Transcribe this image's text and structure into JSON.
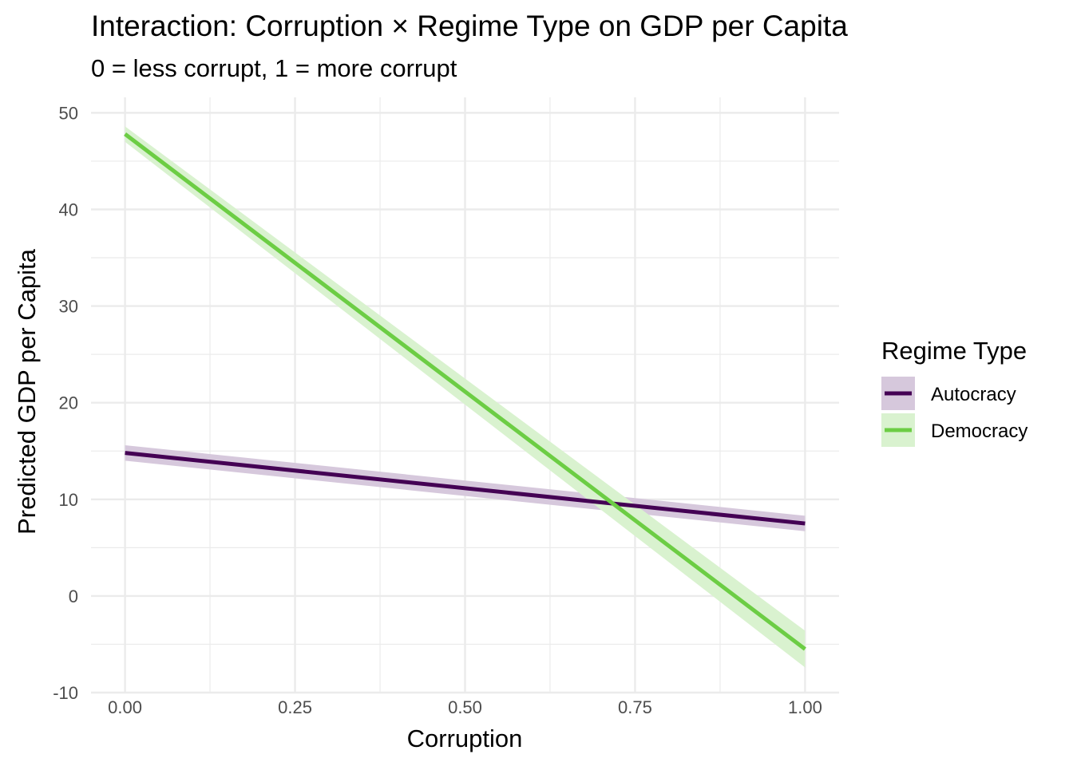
{
  "chart_data": {
    "type": "line",
    "title": "Interaction: Corruption × Regime Type on GDP per Capita",
    "subtitle": "0 = less corrupt, 1 = more corrupt",
    "xlabel": "Corruption",
    "ylabel": "Predicted GDP per Capita",
    "xlim": [
      -0.05,
      1.05
    ],
    "ylim": [
      -10,
      51.6
    ],
    "x_ticks": [
      0,
      0.25,
      0.5,
      0.75,
      1
    ],
    "x_tick_labels": [
      "0.00",
      "0.25",
      "0.50",
      "0.75",
      "1.00"
    ],
    "y_ticks": [
      -10,
      0,
      10,
      20,
      30,
      40,
      50
    ],
    "y_tick_labels": [
      "-10",
      "0",
      "10",
      "20",
      "30",
      "40",
      "50"
    ],
    "grid": true,
    "legend": {
      "title": "Regime Type",
      "position": "right"
    },
    "series": [
      {
        "name": "Autocracy",
        "color": "#440154",
        "fill": "#d6c8dc",
        "x": [
          0,
          1
        ],
        "y": [
          14.8,
          7.5
        ],
        "ci_lower": [
          14.0,
          6.7
        ],
        "ci_upper": [
          15.6,
          8.3
        ]
      },
      {
        "name": "Democracy",
        "color": "#6ccd44",
        "fill": "#d9f2cf",
        "x": [
          0,
          1
        ],
        "y": [
          47.8,
          -5.5
        ],
        "ci_lower": [
          47.0,
          -7.4
        ],
        "ci_upper": [
          48.6,
          -3.6
        ]
      }
    ]
  }
}
